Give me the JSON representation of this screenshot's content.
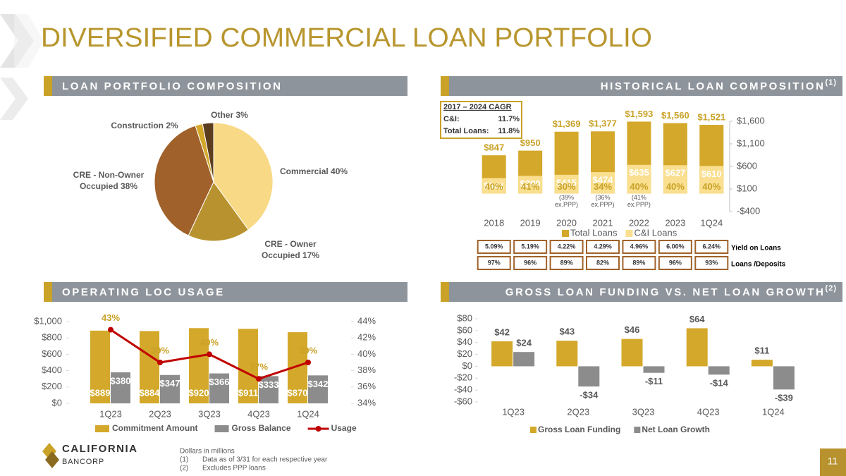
{
  "header": {
    "title": "DIVERSIFIED COMMERCIAL LOAN PORTFOLIO"
  },
  "chart_data": [
    {
      "type": "pie",
      "title": "LOAN PORTFOLIO COMPOSITION",
      "categories": [
        "Commercial",
        "CRE - Owner Occupied",
        "CRE - Non-Owner Occupied",
        "Construction",
        "Other"
      ],
      "values": [
        40,
        17,
        38,
        2,
        3
      ],
      "value_labels": [
        "40%",
        "17%",
        "38%",
        "2%",
        "3%"
      ],
      "colors": [
        "#f8d985",
        "#b8922e",
        "#a0622a",
        "#d4a82a",
        "#5c3d1e"
      ]
    },
    {
      "type": "bar",
      "bar_mode": "overlap",
      "title": "HISTORICAL LOAN COMPOSITION",
      "title_note": "(1)",
      "categories": [
        "2018",
        "2019",
        "2020",
        "2021",
        "2022",
        "2023",
        "1Q24"
      ],
      "series": [
        {
          "name": "Total Loans",
          "color": "#d4a82a",
          "values": [
            847,
            950,
            1369,
            1377,
            1593,
            1560,
            1521
          ],
          "value_labels": [
            "$847",
            "$950",
            "$1,369",
            "$1,377",
            "$1,593",
            "$1,560",
            "$1,521"
          ]
        },
        {
          "name": "C&I Loans",
          "color": "#f9df8f",
          "values": [
            341,
            390,
            415,
            474,
            635,
            627,
            610
          ],
          "value_labels": [
            "$341",
            "$390",
            "$415",
            "$474",
            "$635",
            "$627",
            "$610"
          ]
        }
      ],
      "share_labels": [
        "40%",
        "41%",
        "30%",
        "34%",
        "40%",
        "40%",
        "40%"
      ],
      "ex_ppp_labels": [
        {
          "category": "2020",
          "label": "(39% ex.PPP)"
        },
        {
          "category": "2021",
          "label": "(36% ex.PPP)"
        },
        {
          "category": "2022",
          "label": "(41% ex.PPP)"
        }
      ],
      "ylim": [
        -400,
        1600
      ],
      "yticks": [
        {
          "value": 1600,
          "label": "$1,600"
        },
        {
          "value": 1100,
          "label": "$1,100"
        },
        {
          "value": 600,
          "label": "$600"
        },
        {
          "value": 100,
          "label": "$100"
        },
        {
          "value": -400,
          "label": "-$400"
        }
      ],
      "axis_side": "right",
      "cagr": {
        "title": "2017 – 2024 CAGR",
        "rows": [
          {
            "label": "C&I:",
            "value": "11.7%"
          },
          {
            "label": "Total Loans:",
            "value": "11.8%"
          }
        ]
      },
      "table": {
        "rows": [
          {
            "label": "Yield on Loans",
            "cells": [
              "5.09%",
              "5.19%",
              "4.22%",
              "4.29%",
              "4.96%",
              "6.00%",
              "6.24%"
            ]
          },
          {
            "label": "Loans /Deposits",
            "cells": [
              "97%",
              "96%",
              "89%",
              "82%",
              "89%",
              "96%",
              "93%"
            ]
          }
        ]
      }
    },
    {
      "type": "bar_line",
      "title": "OPERATING LOC USAGE",
      "categories": [
        "1Q23",
        "2Q23",
        "3Q23",
        "4Q23",
        "1Q24"
      ],
      "series": [
        {
          "name": "Commitment Amount",
          "color": "#d4a82a",
          "values": [
            889,
            884,
            920,
            911,
            870
          ],
          "value_labels": [
            "$889",
            "$884",
            "$920",
            "$911",
            "$870"
          ]
        },
        {
          "name": "Gross Balance",
          "color": "#8c8c8c",
          "values": [
            380,
            347,
            366,
            333,
            342
          ],
          "value_labels": [
            "$380",
            "$347",
            "$366",
            "$333",
            "$342"
          ]
        },
        {
          "name": "Usage",
          "type": "line",
          "axis": "y2",
          "color": "#c00000",
          "values": [
            43,
            39,
            40,
            37,
            39
          ],
          "value_labels": [
            "43%",
            "39%",
            "40%",
            "37%",
            "39%"
          ]
        }
      ],
      "ylim": [
        0,
        1000
      ],
      "yticks": [
        {
          "value": 0,
          "label": "$0"
        },
        {
          "value": 200,
          "label": "$200"
        },
        {
          "value": 400,
          "label": "$400"
        },
        {
          "value": 600,
          "label": "$600"
        },
        {
          "value": 800,
          "label": "$800"
        },
        {
          "value": 1000,
          "label": "$1,000"
        }
      ],
      "y2lim": [
        34,
        44
      ],
      "y2ticks": [
        {
          "value": 34,
          "label": "34%"
        },
        {
          "value": 36,
          "label": "36%"
        },
        {
          "value": 38,
          "label": "38%"
        },
        {
          "value": 40,
          "label": "40%"
        },
        {
          "value": 42,
          "label": "42%"
        },
        {
          "value": 44,
          "label": "44%"
        }
      ]
    },
    {
      "type": "bar",
      "bar_mode": "grouped",
      "title": "GROSS LOAN FUNDING VS. NET LOAN GROWTH",
      "title_note": "(2)",
      "categories": [
        "1Q23",
        "2Q23",
        "3Q23",
        "4Q23",
        "1Q24"
      ],
      "series": [
        {
          "name": "Gross Loan Funding",
          "color": "#d4a82a",
          "values": [
            42,
            43,
            46,
            64,
            11
          ],
          "value_labels": [
            "$42",
            "$43",
            "$46",
            "$64",
            "$11"
          ]
        },
        {
          "name": "Net Loan Growth",
          "color": "#8c8c8c",
          "values": [
            24,
            -34,
            -11,
            -14,
            -39
          ],
          "value_labels": [
            "$24",
            "-$34",
            "-$11",
            "-$14",
            "-$39"
          ]
        }
      ],
      "ylim": [
        -60,
        80
      ],
      "yticks": [
        {
          "value": 80,
          "label": "$80"
        },
        {
          "value": 60,
          "label": "$60"
        },
        {
          "value": 40,
          "label": "$40"
        },
        {
          "value": 20,
          "label": "$20"
        },
        {
          "value": 0,
          "label": "$0"
        },
        {
          "value": -20,
          "label": "-$20"
        },
        {
          "value": -40,
          "label": "-$40"
        },
        {
          "value": -60,
          "label": "-$60"
        }
      ],
      "axis_side": "left"
    }
  ],
  "footer": {
    "logo": {
      "line1": "CALIFORNIA",
      "line2": "BANCORP"
    },
    "notes": [
      "Dollars in millions",
      {
        "marker": "(1)",
        "text": "Data as of 3/31 for each respective year"
      },
      {
        "marker": "(2)",
        "text": "Excludes PPP loans"
      }
    ],
    "page_number": "11"
  }
}
